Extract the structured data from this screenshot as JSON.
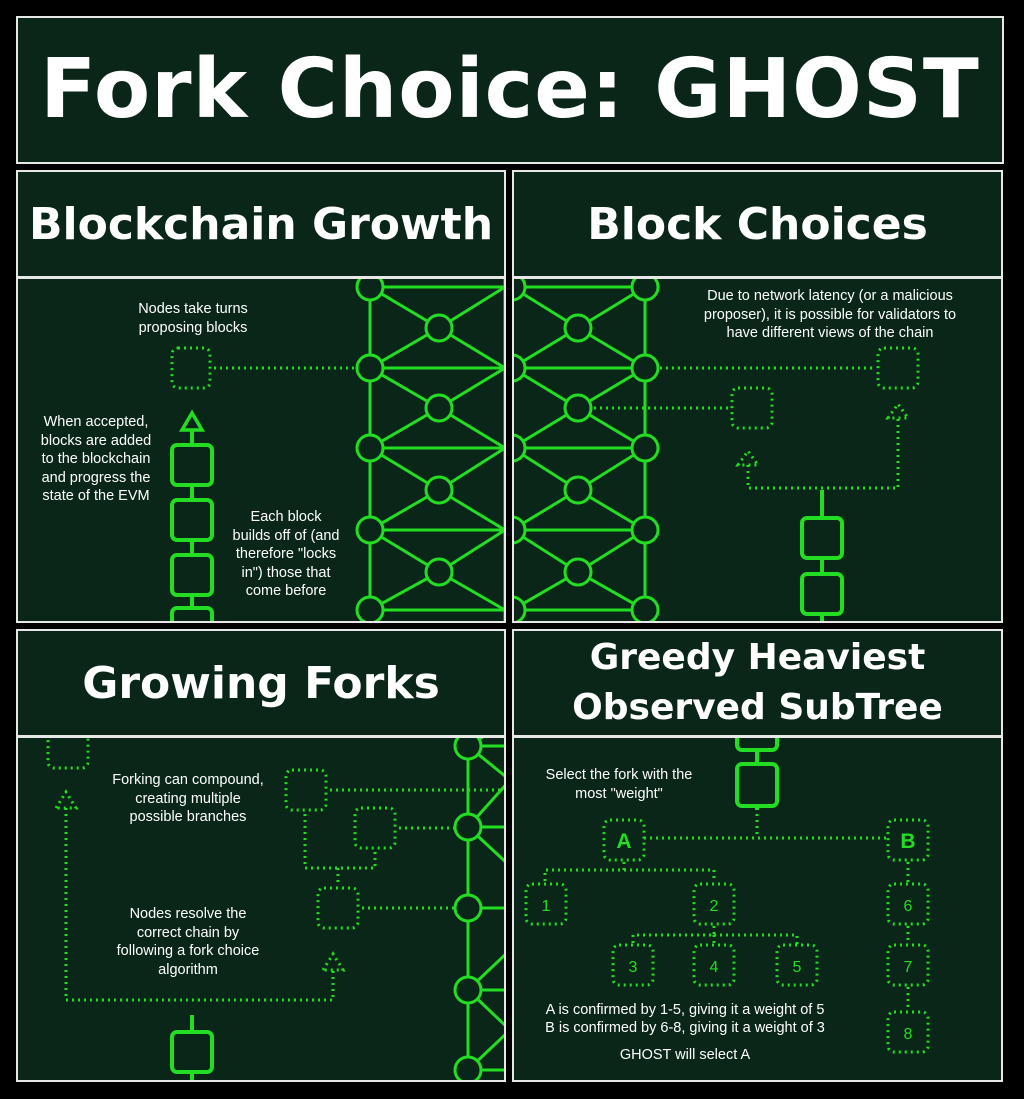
{
  "title": "Fork Choice: GHOST",
  "panels": {
    "growth": {
      "heading": "Blockchain Growth",
      "text_nodes": "Nodes take turns\nproposing blocks",
      "text_accepted": "When accepted,\nblocks are added\nto the blockchain\nand progress the\nstate of the EVM",
      "text_builds": "Each block\nbuilds off of (and\ntherefore \"locks\nin\") those that\ncome before"
    },
    "choices": {
      "heading": "Block Choices",
      "text_latency": "Due to network latency (or a malicious\nproposer), it is possible for validators to\nhave different views of the chain"
    },
    "forks": {
      "heading": "Growing Forks",
      "text_compound": "Forking can compound,\ncreating multiple\npossible branches",
      "text_resolve": "Nodes resolve the\ncorrect chain by\nfollowing a fork choice\nalgorithm"
    },
    "ghost": {
      "heading": "Greedy Heaviest\nObserved SubTree",
      "text_select": "Select the fork with the\nmost \"weight\"",
      "block_a": "A",
      "block_b": "B",
      "blocks": [
        "1",
        "2",
        "3",
        "4",
        "5",
        "6",
        "7",
        "8"
      ],
      "confirm_a": "A is confirmed by 1-5, giving it a weight of 5",
      "confirm_b": "B is confirmed by 6-8, giving it a weight of 3",
      "result": "GHOST will select A"
    }
  },
  "colors": {
    "background": "#0a2619",
    "accent": "#22dd22",
    "border": "#e8e8e8",
    "text": "#ffffff"
  }
}
